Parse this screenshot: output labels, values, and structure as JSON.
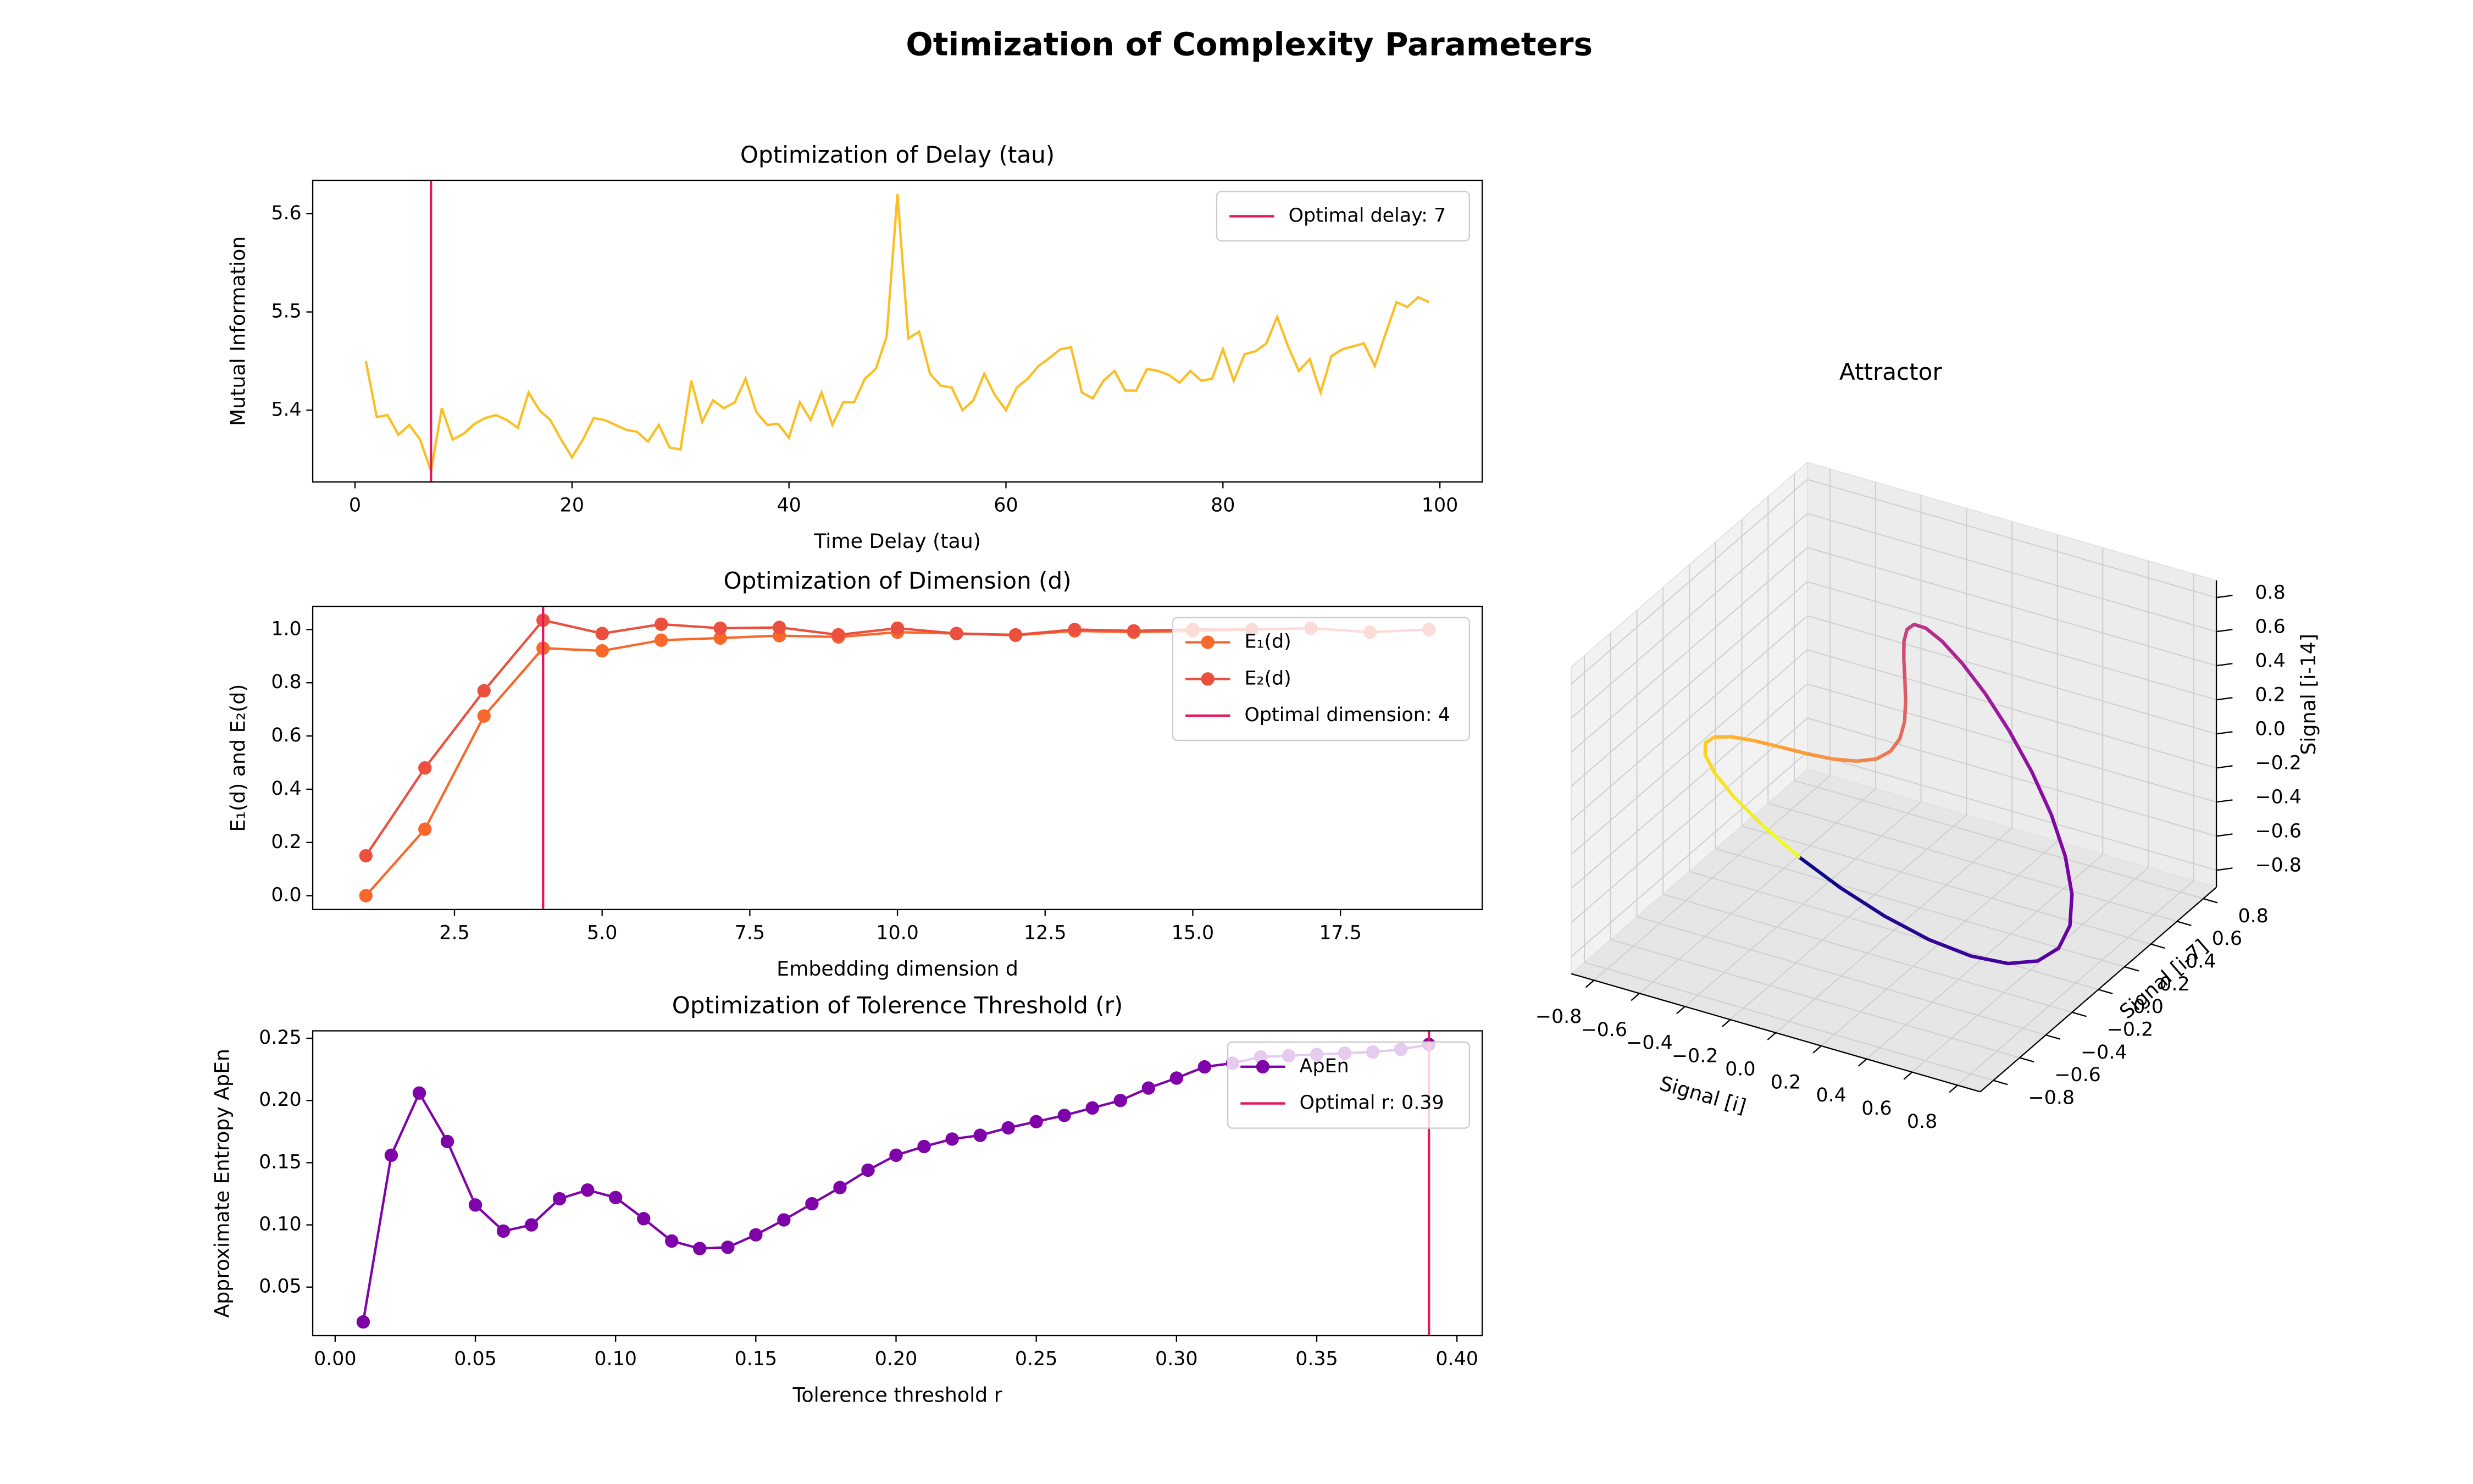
{
  "title": "Otimization of Complexity Parameters",
  "chart_data": [
    {
      "type": "line",
      "title": "Optimization of Delay (tau)",
      "xlabel": "Time Delay (tau)",
      "ylabel": "Mutual Information",
      "x": [
        1,
        2,
        3,
        4,
        5,
        6,
        7,
        8,
        9,
        10,
        11,
        12,
        13,
        14,
        15,
        16,
        17,
        18,
        19,
        20,
        21,
        22,
        23,
        24,
        25,
        26,
        27,
        28,
        29,
        30,
        31,
        32,
        33,
        34,
        35,
        36,
        37,
        38,
        39,
        40,
        41,
        42,
        43,
        44,
        45,
        46,
        47,
        48,
        49,
        50,
        51,
        52,
        53,
        54,
        55,
        56,
        57,
        58,
        59,
        60,
        61,
        62,
        63,
        64,
        65,
        66,
        67,
        68,
        69,
        70,
        71,
        72,
        73,
        74,
        75,
        76,
        77,
        78,
        79,
        80,
        81,
        82,
        83,
        84,
        85,
        86,
        87,
        88,
        89,
        90,
        91,
        92,
        93,
        94,
        95,
        96,
        97,
        98,
        99
      ],
      "series": [
        {
          "color": "#fbbf26",
          "values": [
            5.45,
            5.393,
            5.395,
            5.375,
            5.385,
            5.37,
            5.338,
            5.402,
            5.37,
            5.376,
            5.386,
            5.392,
            5.395,
            5.39,
            5.382,
            5.418,
            5.4,
            5.39,
            5.37,
            5.352,
            5.37,
            5.392,
            5.39,
            5.385,
            5.38,
            5.378,
            5.368,
            5.385,
            5.362,
            5.36,
            5.43,
            5.388,
            5.41,
            5.402,
            5.408,
            5.432,
            5.398,
            5.385,
            5.386,
            5.372,
            5.408,
            5.39,
            5.418,
            5.385,
            5.408,
            5.408,
            5.432,
            5.442,
            5.475,
            5.62,
            5.473,
            5.48,
            5.437,
            5.425,
            5.423,
            5.4,
            5.41,
            5.437,
            5.415,
            5.4,
            5.423,
            5.432,
            5.445,
            5.453,
            5.462,
            5.464,
            5.418,
            5.412,
            5.43,
            5.44,
            5.42,
            5.42,
            5.442,
            5.44,
            5.436,
            5.428,
            5.44,
            5.43,
            5.432,
            5.462,
            5.43,
            5.457,
            5.46,
            5.468,
            5.495,
            5.465,
            5.44,
            5.452,
            5.418,
            5.455,
            5.462,
            5.465,
            5.468,
            5.445,
            5.478,
            5.51,
            5.505,
            5.515,
            5.51
          ]
        }
      ],
      "markers": false,
      "vline": {
        "value": 7,
        "label": "Optimal delay: 7",
        "color": "#e3175f"
      },
      "xlim": [
        -3.9,
        103.9
      ],
      "ylim": [
        5.327,
        5.634
      ],
      "xticks": [
        0,
        20,
        40,
        60,
        80,
        100
      ],
      "yticks": [
        5.4,
        5.5,
        5.6
      ],
      "legend": "upper right"
    },
    {
      "type": "line",
      "title": "Optimization of Dimension (d)",
      "xlabel": "Embedding dimension d",
      "ylabel": "E₁(d) and E₂(d)",
      "x": [
        1,
        2,
        3,
        4,
        5,
        6,
        7,
        8,
        9,
        10,
        11,
        12,
        13,
        14,
        15,
        16,
        17,
        18,
        19
      ],
      "series": [
        {
          "name": "E₁(d)",
          "color": "#f8682a",
          "values": [
            0.0,
            0.25,
            0.675,
            0.93,
            0.92,
            0.96,
            0.968,
            0.977,
            0.972,
            0.99,
            0.985,
            0.978,
            0.995,
            0.99,
            0.995,
            1.0,
            1.005,
            0.99,
            1.0
          ]
        },
        {
          "name": "E₂(d)",
          "color": "#eb4f3e",
          "values": [
            0.15,
            0.48,
            0.77,
            1.035,
            0.985,
            1.02,
            1.005,
            1.008,
            0.98,
            1.005,
            0.985,
            0.98,
            1.0,
            0.995,
            1.0,
            1.0,
            1.005,
            0.99,
            1.0
          ]
        }
      ],
      "markers": true,
      "vline": {
        "value": 4,
        "label": "Optimal dimension: 4",
        "color": "#e3175f"
      },
      "xlim": [
        0.1,
        19.9
      ],
      "ylim": [
        -0.052,
        1.087
      ],
      "xticks": [
        2.5,
        {
          "value": 5,
          "label": "5.0"
        },
        7.5,
        {
          "value": 10,
          "label": "10.0"
        },
        12.5,
        {
          "value": 15,
          "label": "15.0"
        },
        17.5
      ],
      "yticks": [
        {
          "value": 0,
          "label": "0.0"
        },
        0.2,
        0.4,
        0.6,
        0.8,
        {
          "value": 1,
          "label": "1.0"
        }
      ],
      "legend": "upper right"
    },
    {
      "type": "line",
      "title": "Optimization of Tolerence Threshold (r)",
      "xlabel": "Tolerence threshold r",
      "ylabel": "Approximate Entropy ApEn",
      "x": [
        0.01,
        0.02,
        0.03,
        0.04,
        0.05,
        0.06,
        0.07,
        0.08,
        0.09,
        0.1,
        0.11,
        0.12,
        0.13,
        0.14,
        0.15,
        0.16,
        0.17,
        0.18,
        0.19,
        0.2,
        0.21,
        0.22,
        0.23,
        0.24,
        0.25,
        0.26,
        0.27,
        0.28,
        0.29,
        0.3,
        0.31,
        0.32,
        0.33,
        0.34,
        0.35,
        0.36,
        0.37,
        0.38,
        0.39
      ],
      "series": [
        {
          "name": "ApEn",
          "color": "#7e03a8",
          "values": [
            0.022,
            0.156,
            0.206,
            0.167,
            0.116,
            0.095,
            0.1,
            0.121,
            0.128,
            0.122,
            0.105,
            0.087,
            0.081,
            0.082,
            0.092,
            0.104,
            0.117,
            0.13,
            0.144,
            0.156,
            0.163,
            0.169,
            0.172,
            0.178,
            0.183,
            0.188,
            0.194,
            0.2,
            0.21,
            0.218,
            0.227,
            0.23,
            0.235,
            0.236,
            0.237,
            0.238,
            0.239,
            0.241,
            0.245
          ]
        }
      ],
      "markers": true,
      "vline": {
        "value": 0.39,
        "label": "Optimal r: 0.39",
        "color": "#e3175f"
      },
      "xlim": [
        -0.008,
        0.409
      ],
      "ylim": [
        0.011,
        0.256
      ],
      "xticks": [
        {
          "value": 0,
          "label": "0.00"
        },
        0.05,
        {
          "value": 0.1,
          "label": "0.10"
        },
        0.15,
        {
          "value": 0.2,
          "label": "0.20"
        },
        0.25,
        {
          "value": 0.3,
          "label": "0.30"
        },
        0.35,
        {
          "value": 0.4,
          "label": "0.40"
        }
      ],
      "yticks": [
        0.05,
        {
          "value": 0.1,
          "label": "0.10"
        },
        0.15,
        {
          "value": 0.2,
          "label": "0.20"
        },
        0.25
      ],
      "legend": "upper right"
    },
    {
      "type": "line3d",
      "title": "Attractor",
      "xlabel": "Signal [i]",
      "ylabel": "Signal [i-7]",
      "zlabel": "Signal [i-14]",
      "colormap": "plasma",
      "x": [
        0,
        0.194,
        0.374,
        0.528,
        0.645,
        0.718,
        0.745,
        0.725,
        0.663,
        0.568,
        0.45,
        0.321,
        0.193,
        0.077,
        -0.016,
        -0.082,
        -0.116,
        -0.119,
        -0.096,
        -0.053,
        0,
        0.053,
        0.096,
        0.119,
        0.116,
        0.082,
        0.016,
        -0.077,
        -0.193,
        -0.321,
        -0.45,
        -0.568,
        -0.663,
        -0.725,
        -0.745,
        -0.718,
        -0.645,
        -0.528,
        -0.374,
        -0.194,
        0
      ],
      "y": [
        -0.725,
        -0.745,
        -0.718,
        -0.645,
        -0.528,
        -0.374,
        -0.194,
        0,
        0.194,
        0.374,
        0.528,
        0.645,
        0.718,
        0.745,
        0.725,
        0.663,
        0.568,
        0.45,
        0.321,
        0.193,
        0.077,
        -0.016,
        -0.082,
        -0.116,
        -0.119,
        -0.096,
        -0.053,
        0,
        0.053,
        0.096,
        0.119,
        0.116,
        0.082,
        0.016,
        -0.077,
        -0.193,
        -0.321,
        -0.45,
        -0.568,
        -0.663,
        -0.725
      ],
      "z": [
        0.016,
        -0.077,
        -0.193,
        -0.321,
        -0.45,
        -0.568,
        -0.663,
        -0.725,
        -0.745,
        -0.718,
        -0.645,
        -0.528,
        -0.374,
        -0.194,
        0,
        0.194,
        0.374,
        0.528,
        0.645,
        0.718,
        0.745,
        0.725,
        0.663,
        0.568,
        0.45,
        0.321,
        0.193,
        0.077,
        -0.016,
        -0.082,
        -0.116,
        -0.119,
        -0.096,
        -0.053,
        0,
        0.053,
        0.096,
        0.119,
        0.116,
        0.082,
        0.016
      ],
      "xlim": [
        -0.9,
        0.9
      ],
      "ylim": [
        -0.9,
        0.9
      ],
      "zlim": [
        -0.9,
        0.9
      ],
      "xticks": [
        {
          "value": -0.8,
          "label": "−0.8"
        },
        {
          "value": -0.6,
          "label": "−0.6"
        },
        {
          "value": -0.4,
          "label": "−0.4"
        },
        {
          "value": -0.2,
          "label": "−0.2"
        },
        {
          "value": 0,
          "label": "0.0"
        },
        0.2,
        0.4,
        0.6,
        0.8
      ],
      "yticks": [
        {
          "value": -0.8,
          "label": "−0.8"
        },
        {
          "value": -0.6,
          "label": "−0.6"
        },
        {
          "value": -0.4,
          "label": "−0.4"
        },
        {
          "value": -0.2,
          "label": "−0.2"
        },
        {
          "value": 0,
          "label": "0.0"
        },
        0.2,
        0.4,
        0.6,
        0.8
      ],
      "zticks": [
        {
          "value": -0.8,
          "label": "−0.8"
        },
        {
          "value": -0.6,
          "label": "−0.6"
        },
        {
          "value": -0.4,
          "label": "−0.4"
        },
        {
          "value": -0.2,
          "label": "−0.2"
        },
        {
          "value": 0,
          "label": "0.0"
        },
        0.2,
        0.4,
        0.6,
        0.8
      ]
    }
  ]
}
